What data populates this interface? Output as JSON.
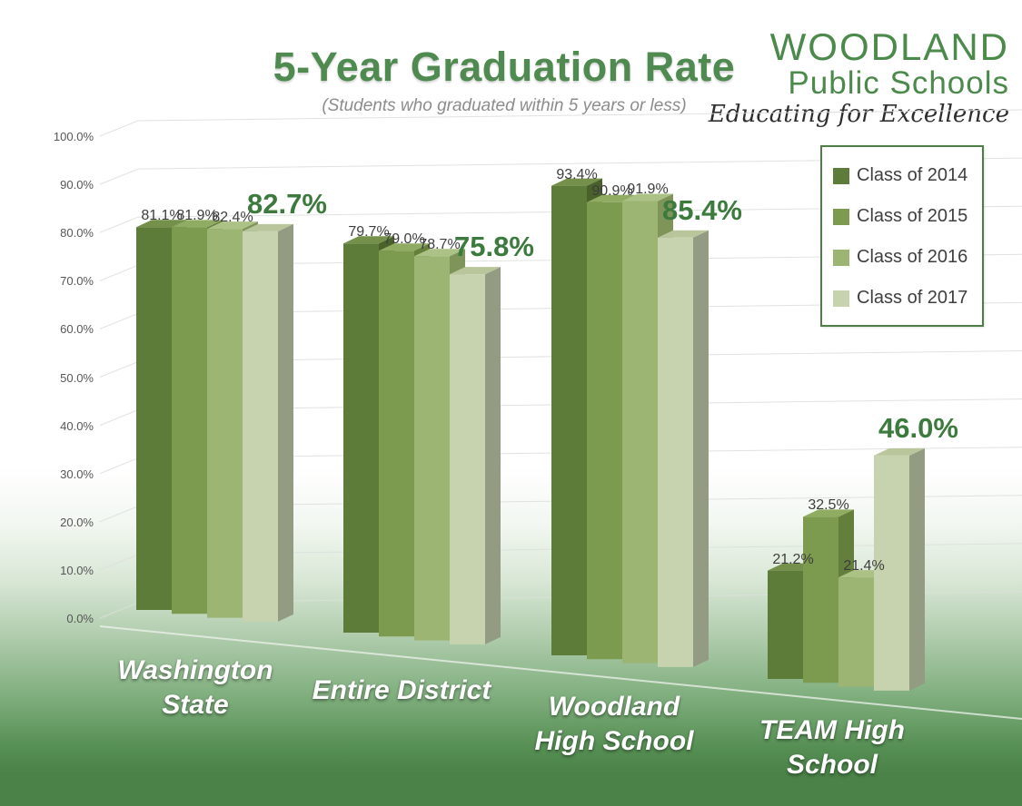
{
  "header": {
    "title": "5-Year Graduation Rate",
    "subtitle": "(Students who graduated within 5 years or less)"
  },
  "logo": {
    "line1": "WOODLAND",
    "line2": "Public Schools",
    "tagline": "Educating for Excellence"
  },
  "category_labels": [
    "Washington\nState",
    "Entire District",
    "Woodland\nHigh School",
    "TEAM High\nSchool"
  ],
  "y_axis": {
    "ticks": [
      "100.0%",
      "90.0%",
      "80.0%",
      "70.0%",
      "60.0%",
      "50.0%",
      "40.0%",
      "30.0%",
      "20.0%",
      "10.0%",
      "0.0%"
    ]
  },
  "colors": {
    "title_green": "#4f8a50",
    "highlight_label_green": "#3c7a3e",
    "footer_green": "#4a8248",
    "legend_border": "#4e7d46"
  },
  "chart_data": {
    "type": "bar",
    "style": "3d-column",
    "title": "5-Year Graduation Rate",
    "subtitle": "(Students who graduated within 5 years or less)",
    "categories": [
      "Washington State",
      "Entire District",
      "Woodland High School",
      "TEAM High School"
    ],
    "series": [
      {
        "name": "Class of 2014",
        "values": [
          81.1,
          79.7,
          93.4,
          21.2
        ],
        "color": "#5e7c39",
        "top_color": "#74904a",
        "side_color": "#4a612c"
      },
      {
        "name": "Class of 2015",
        "values": [
          81.9,
          79.0,
          90.9,
          32.5
        ],
        "color": "#7d9b4e",
        "top_color": "#8fac62",
        "side_color": "#647e3c"
      },
      {
        "name": "Class of 2016",
        "values": [
          82.4,
          78.7,
          91.9,
          21.4
        ],
        "color": "#9cb573",
        "top_color": "#abc186",
        "side_color": "#7e9459"
      },
      {
        "name": "Class of 2017",
        "values": [
          82.7,
          75.8,
          85.4,
          46.0
        ],
        "color": "#c7d3ae",
        "top_color": "#b9c69c",
        "side_color": "#939b82",
        "highlight": true
      }
    ],
    "value_label_format": "0.0%",
    "highlight_series": "Class of 2017",
    "ylim": [
      0,
      100
    ],
    "y_tick_step": 10,
    "grid": true,
    "legend_position": "top-right"
  }
}
